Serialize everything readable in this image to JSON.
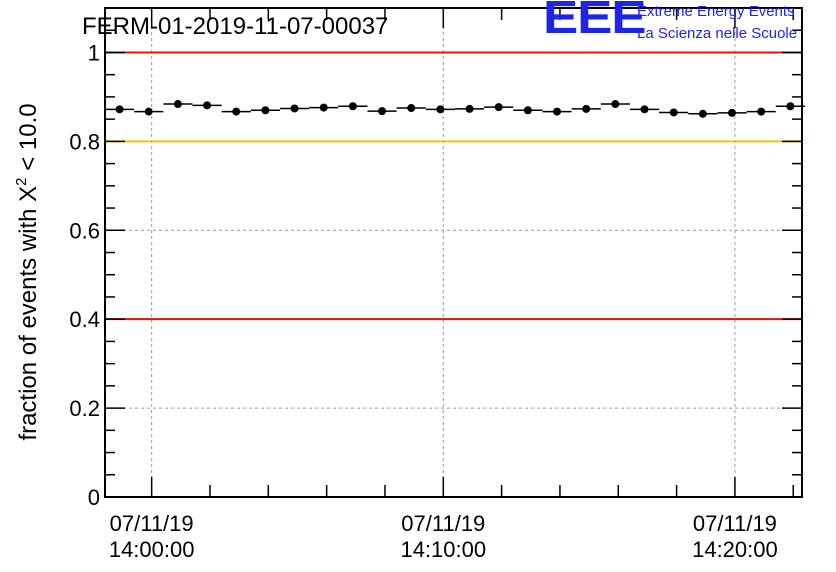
{
  "logo": {
    "mark": "EEE",
    "line1": "Extreme Energy Events",
    "line2": "La Scienza nelle Scuole",
    "color": "#1f25e6"
  },
  "chart_data": {
    "type": "scatter",
    "title": "FERM-01-2019-11-07-00037",
    "xlabel": "",
    "ylabel_prefix": "fraction of events with X",
    "ylabel_sup": "2",
    "ylabel_suffix": " < 10.0",
    "ylim": [
      0,
      1.1
    ],
    "yticks": [
      0,
      0.2,
      0.4,
      0.6,
      0.8,
      1
    ],
    "ytick_labels": [
      "0",
      "0.2",
      "0.4",
      "0.6",
      "0.8",
      "1"
    ],
    "xlim_minutes": [
      -1.6,
      22.3
    ],
    "xticks_minutes": [
      0,
      10,
      20
    ],
    "xtick_labels": [
      {
        "date": "07/11/19",
        "time": "14:00:00"
      },
      {
        "date": "07/11/19",
        "time": "14:10:00"
      },
      {
        "date": "07/11/19",
        "time": "14:20:00"
      }
    ],
    "bin_width_minutes": 1,
    "x_minutes": [
      -1.1,
      -0.1,
      0.9,
      1.9,
      2.9,
      3.9,
      4.9,
      5.9,
      6.9,
      7.9,
      8.9,
      9.9,
      10.9,
      11.9,
      12.9,
      13.9,
      14.9,
      15.9,
      16.9,
      17.9,
      18.9,
      19.9,
      20.9,
      21.9
    ],
    "values": [
      0.872,
      0.867,
      0.884,
      0.881,
      0.867,
      0.87,
      0.874,
      0.876,
      0.879,
      0.868,
      0.875,
      0.872,
      0.873,
      0.877,
      0.87,
      0.867,
      0.873,
      0.884,
      0.872,
      0.865,
      0.862,
      0.864,
      0.867,
      0.879
    ],
    "reference_lines": [
      {
        "y": 1.0,
        "color": "#e3120b"
      },
      {
        "y": 0.8,
        "color": "#f4c20d"
      },
      {
        "y": 0.4,
        "color": "#e3120b"
      }
    ],
    "grid": true
  }
}
